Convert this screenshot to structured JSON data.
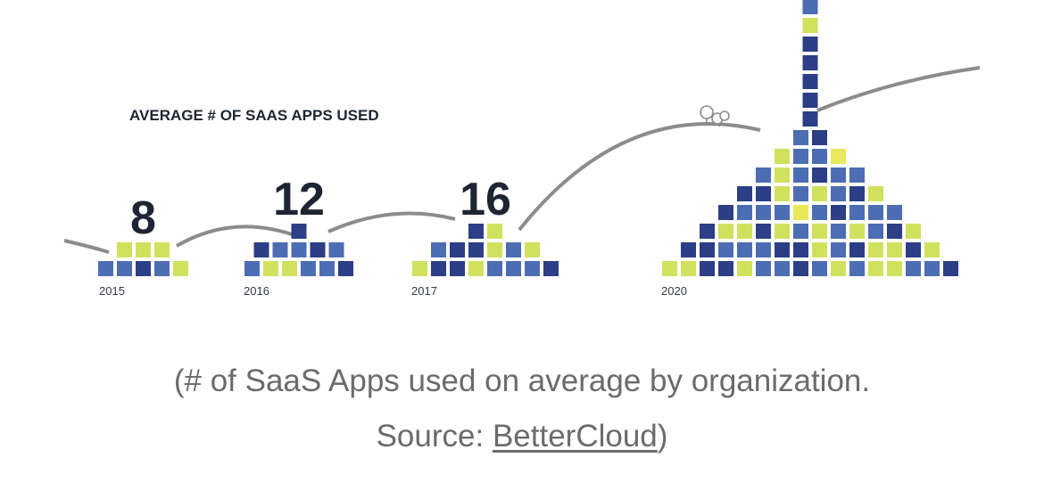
{
  "chart_data": {
    "type": "bar",
    "title": "AVERAGE # OF SAAS APPS USED",
    "categories": [
      "2015",
      "2016",
      "2017",
      "2020"
    ],
    "values": [
      8,
      12,
      16,
      80
    ],
    "highlight_index": 3,
    "colors": {
      "text": "#1d2533",
      "highlight": "#cd3b8f",
      "curve": "#8c8c8c",
      "squares": [
        "#4d6db3",
        "#6ec7c7",
        "#9c2f87",
        "#c8338f",
        "#2c3e86",
        "#e8e95a",
        "#62b9dd",
        "#52b9a4",
        "#d0e15d",
        "#7fcdbb",
        "#d2417f",
        "#5a3a97"
      ]
    }
  },
  "caption": {
    "line1": "(# of SaaS Apps used on average by organization.",
    "source_prefix": "Source: ",
    "source_link": "BetterCloud",
    "source_suffix": ")"
  }
}
